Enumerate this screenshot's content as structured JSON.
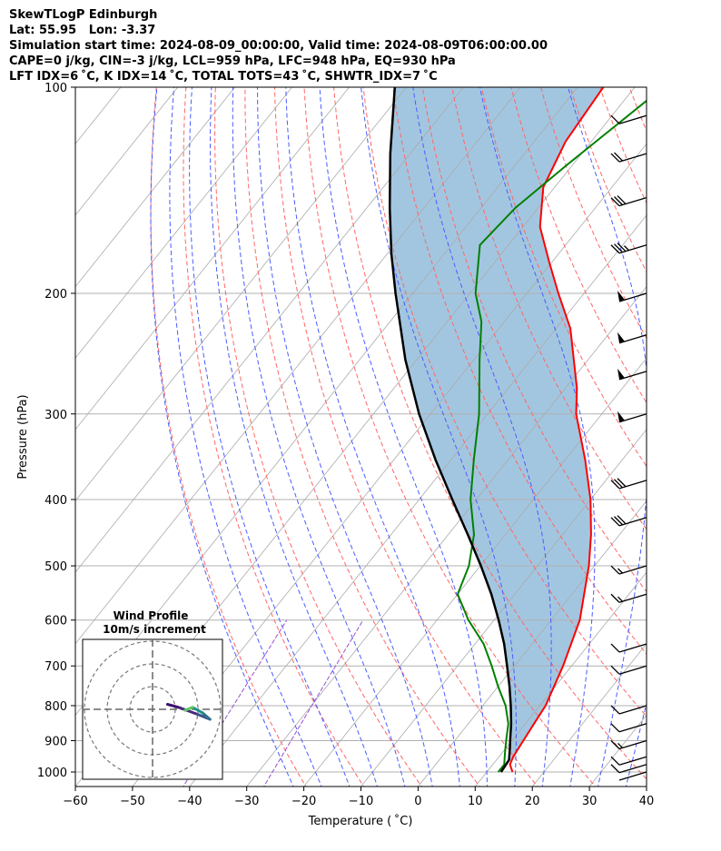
{
  "header": {
    "line1": "SkewTLogP Edinburgh",
    "line2": "Lat: 55.95   Lon: -3.37",
    "line3": "Simulation start time: 2024-08-09_00:00:00, Valid time: 2024-08-09T06:00:00.00",
    "line4": "CAPE=0 j/kg, CIN=-3 j/kg, LCL=959 hPa, LFC=948 hPa, EQ=930 hPa",
    "line5": "LFT IDX=6 ˚C, K IDX=14 ˚C, TOTAL TOTS=43 ˚C, SHWTR_IDX=7 ˚C"
  },
  "chart_data": {
    "type": "line",
    "xlabel": "Temperature ( ˚C)",
    "ylabel": "Pressure (hPa)",
    "xlim": [
      -60,
      40
    ],
    "ylim": [
      1050,
      100
    ],
    "y_scale": "log",
    "grid": true,
    "x_ticks": [
      "−60",
      "−50",
      "−40",
      "−30",
      "−20",
      "−10",
      "0",
      "10",
      "20",
      "30",
      "40"
    ],
    "y_ticks": [
      "1000",
      "900",
      "800",
      "700",
      "600",
      "500",
      "400",
      "300",
      "200",
      "100"
    ],
    "colors": {
      "temperature": "#ff0000",
      "dewpoint": "#008000",
      "parcel": "#000000",
      "cape_fill": "#a3c6e0",
      "dry_adiabat": "#ff6666",
      "moist_adiabat": "#4a5cff",
      "mixing_ratio": "#9a4fd0",
      "isotherm": "#aaaaaa"
    },
    "series": [
      {
        "role": "temperature",
        "pressure": [
          1000,
          975,
          950,
          900,
          850,
          800,
          700,
          600,
          500,
          450,
          400,
          350,
          300,
          275,
          250,
          225,
          200,
          180,
          160,
          140,
          120,
          100
        ],
        "temp": [
          14.5,
          13.0,
          12.5,
          12.0,
          11.5,
          11.0,
          8.5,
          5.0,
          -1.0,
          -5.0,
          -10.0,
          -16.5,
          -24.5,
          -28.0,
          -32.5,
          -37.5,
          -44.5,
          -50.5,
          -57.0,
          -62.0,
          -64.5,
          -65.5
        ]
      },
      {
        "role": "dewpoint",
        "pressure": [
          1000,
          975,
          950,
          925,
          900,
          850,
          800,
          750,
          700,
          650,
          600,
          550,
          500,
          450,
          400,
          350,
          300,
          250,
          220,
          200,
          170,
          150,
          130,
          100
        ],
        "temp": [
          12.0,
          12.0,
          11.0,
          10.0,
          9.0,
          7.0,
          4.0,
          0.0,
          -4.0,
          -8.5,
          -14.5,
          -20.0,
          -22.0,
          -25.5,
          -31.0,
          -36.0,
          -41.5,
          -49.0,
          -54.0,
          -59.0,
          -65.0,
          -64.0,
          -61.0,
          -55.0
        ]
      },
      {
        "role": "parcel",
        "pressure": [
          1000,
          960,
          950,
          925,
          900,
          850,
          800,
          750,
          700,
          650,
          600,
          550,
          500,
          450,
          400,
          350,
          300,
          250,
          200,
          175,
          150,
          125,
          100
        ],
        "temp": [
          12.5,
          12.2,
          11.8,
          10.8,
          9.7,
          7.5,
          4.9,
          2.0,
          -1.3,
          -4.9,
          -9.2,
          -14.1,
          -19.9,
          -26.6,
          -34.2,
          -42.7,
          -52.0,
          -62.0,
          -73.0,
          -79.3,
          -86.0,
          -93.5,
          -102.0
        ]
      }
    ],
    "wind_barbs": [
      {
        "pressure": 1000,
        "flags": 0,
        "full": 0,
        "half": 0
      },
      {
        "pressure": 975,
        "flags": 0,
        "full": 1,
        "half": 0
      },
      {
        "pressure": 950,
        "flags": 0,
        "full": 1,
        "half": 0
      },
      {
        "pressure": 900,
        "flags": 0,
        "full": 1,
        "half": 1
      },
      {
        "pressure": 850,
        "flags": 0,
        "full": 1,
        "half": 0
      },
      {
        "pressure": 800,
        "flags": 0,
        "full": 1,
        "half": 0
      },
      {
        "pressure": 700,
        "flags": 0,
        "full": 1,
        "half": 0
      },
      {
        "pressure": 650,
        "flags": 0,
        "full": 1,
        "half": 0
      },
      {
        "pressure": 550,
        "flags": 0,
        "full": 1,
        "half": 1
      },
      {
        "pressure": 500,
        "flags": 0,
        "full": 1,
        "half": 1
      },
      {
        "pressure": 425,
        "flags": 0,
        "full": 3,
        "half": 0
      },
      {
        "pressure": 375,
        "flags": 0,
        "full": 3,
        "half": 0
      },
      {
        "pressure": 300,
        "flags": 1,
        "full": 0,
        "half": 0
      },
      {
        "pressure": 260,
        "flags": 1,
        "full": 0,
        "half": 0
      },
      {
        "pressure": 230,
        "flags": 1,
        "full": 0,
        "half": 0
      },
      {
        "pressure": 200,
        "flags": 1,
        "full": 0,
        "half": 0
      },
      {
        "pressure": 170,
        "flags": 0,
        "full": 3,
        "half": 1
      },
      {
        "pressure": 145,
        "flags": 0,
        "full": 3,
        "half": 0
      },
      {
        "pressure": 125,
        "flags": 0,
        "full": 2,
        "half": 0
      },
      {
        "pressure": 110,
        "flags": 0,
        "full": 1,
        "half": 0
      }
    ],
    "inset": {
      "title": "Wind Profile",
      "subtitle": "10m/s increment",
      "rings": 3,
      "hodograph": [
        {
          "u": 3.0,
          "v": 1.0
        },
        {
          "u": 5.5,
          "v": 0.3
        },
        {
          "u": 9.0,
          "v": -1.0
        },
        {
          "u": 11.5,
          "v": -2.0
        },
        {
          "u": 10.0,
          "v": -0.7
        },
        {
          "u": 8.0,
          "v": 0.4
        },
        {
          "u": 6.5,
          "v": -0.2
        }
      ]
    }
  }
}
